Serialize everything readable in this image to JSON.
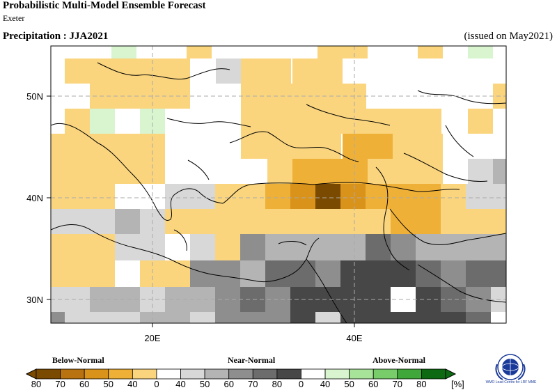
{
  "header": {
    "title": "Probabilistic Multi-Model Ensemble Forecast",
    "subtitle": "Exeter",
    "variable_label": "Precipitation : JJA2021",
    "issued_label": "(issued on May2021)"
  },
  "map": {
    "lat_labels": [
      "50N",
      "40N",
      "30N"
    ],
    "lon_labels": [
      "20E",
      "40E"
    ],
    "lat_values": [
      50,
      40,
      30
    ],
    "lon_values": [
      20,
      40
    ]
  },
  "legend": {
    "categories": [
      "Below-Normal",
      "Near-Normal",
      "Above-Normal"
    ],
    "tick_labels": [
      "80",
      "70",
      "60",
      "50",
      "40",
      "0",
      "40",
      "50",
      "60",
      "70",
      "80",
      "0",
      "40",
      "50",
      "60",
      "70",
      "80"
    ],
    "unit": "[%]",
    "colors": {
      "below": [
        "#7a4a00",
        "#b8720f",
        "#d9921a",
        "#efb038",
        "#fad57e"
      ],
      "white": "#ffffff",
      "near": [
        "#d8d8d8",
        "#b4b4b4",
        "#8e8e8e",
        "#6c6c6c",
        "#474747"
      ],
      "above": [
        "#d8f5d0",
        "#a8e39a",
        "#78cc6a",
        "#40a73a",
        "#0d6a12"
      ]
    }
  },
  "logo": {
    "caption": "WMO Lead Centre for LRF MME"
  }
}
